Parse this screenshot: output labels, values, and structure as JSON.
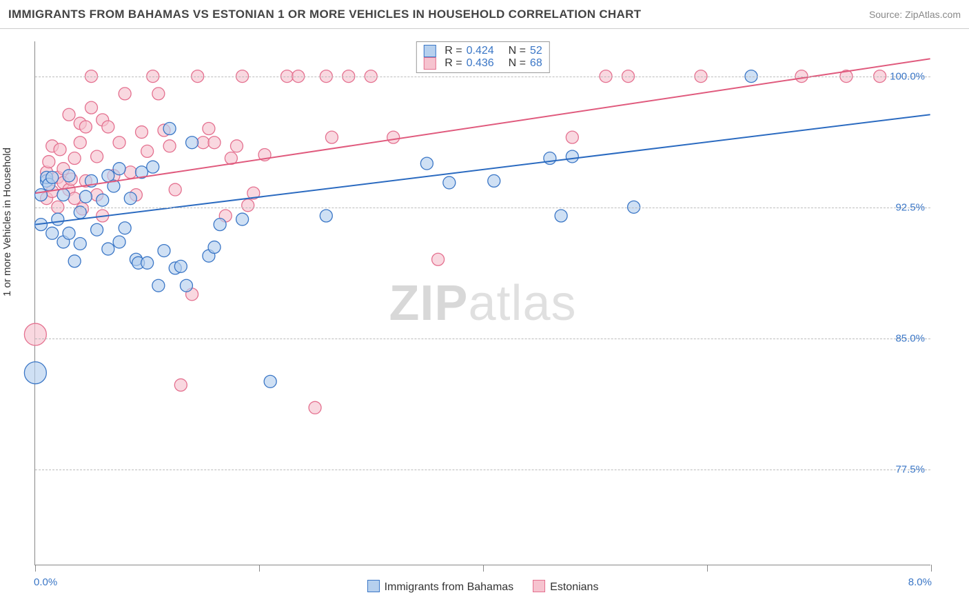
{
  "title": "IMMIGRANTS FROM BAHAMAS VS ESTONIAN 1 OR MORE VEHICLES IN HOUSEHOLD CORRELATION CHART",
  "source_label": "Source:",
  "source_name": "ZipAtlas.com",
  "y_axis_label": "1 or more Vehicles in Household",
  "watermark_a": "ZIP",
  "watermark_b": "atlas",
  "chart": {
    "type": "scatter",
    "xlim": [
      0.0,
      8.0
    ],
    "ylim": [
      72.0,
      102.0
    ],
    "x_ticks": [
      0.0,
      2.0,
      4.0,
      6.0,
      8.0
    ],
    "x_end_labels": [
      "0.0%",
      "8.0%"
    ],
    "y_gridlines": [
      77.5,
      85.0,
      92.5,
      100.0
    ],
    "y_tick_labels": [
      "77.5%",
      "85.0%",
      "92.5%",
      "100.0%"
    ],
    "grid_color": "#bbbbbb",
    "background_color": "#ffffff",
    "marker_radius": 9,
    "marker_radius_large": 16,
    "series": [
      {
        "name": "Immigrants from Bahamas",
        "fill": "#b6d0ee",
        "stroke": "#3a76c6",
        "fill_opacity": 0.65,
        "R": 0.424,
        "N": 52,
        "trend": {
          "x1": 0.0,
          "y1": 91.5,
          "x2": 8.0,
          "y2": 97.8,
          "color": "#2a6ac0",
          "width": 2
        },
        "points": [
          [
            0.05,
            91.5
          ],
          [
            0.05,
            93.2
          ],
          [
            0.1,
            94.0
          ],
          [
            0.1,
            94.2
          ],
          [
            0.12,
            93.8
          ],
          [
            0.15,
            91.0
          ],
          [
            0.15,
            94.2
          ],
          [
            0.2,
            91.8
          ],
          [
            0.25,
            90.5
          ],
          [
            0.25,
            93.2
          ],
          [
            0.3,
            91.0
          ],
          [
            0.3,
            94.3
          ],
          [
            0.35,
            89.4
          ],
          [
            0.4,
            92.2
          ],
          [
            0.4,
            90.4
          ],
          [
            0.45,
            93.1
          ],
          [
            0.5,
            94.0
          ],
          [
            0.55,
            91.2
          ],
          [
            0.6,
            92.9
          ],
          [
            0.65,
            94.3
          ],
          [
            0.65,
            90.1
          ],
          [
            0.7,
            93.7
          ],
          [
            0.75,
            94.7
          ],
          [
            0.75,
            90.5
          ],
          [
            0.8,
            91.3
          ],
          [
            0.85,
            93.0
          ],
          [
            0.9,
            89.5
          ],
          [
            0.92,
            89.3
          ],
          [
            0.95,
            94.5
          ],
          [
            1.0,
            89.3
          ],
          [
            1.05,
            94.8
          ],
          [
            1.1,
            88.0
          ],
          [
            1.15,
            90.0
          ],
          [
            1.2,
            97.0
          ],
          [
            1.25,
            89.0
          ],
          [
            1.3,
            89.1
          ],
          [
            1.35,
            88.0
          ],
          [
            1.4,
            96.2
          ],
          [
            1.55,
            89.7
          ],
          [
            1.6,
            90.2
          ],
          [
            1.65,
            91.5
          ],
          [
            1.85,
            91.8
          ],
          [
            2.1,
            82.5
          ],
          [
            2.6,
            92.0
          ],
          [
            3.5,
            95.0
          ],
          [
            3.7,
            93.9
          ],
          [
            4.1,
            94.0
          ],
          [
            4.6,
            95.3
          ],
          [
            4.7,
            92.0
          ],
          [
            4.8,
            95.4
          ],
          [
            5.35,
            92.5
          ],
          [
            6.4,
            100.0
          ]
        ],
        "large_points": [
          [
            0.0,
            83.0
          ]
        ]
      },
      {
        "name": "Estonians",
        "fill": "#f6c3cf",
        "stroke": "#e4708f",
        "fill_opacity": 0.65,
        "R": 0.436,
        "N": 68,
        "trend": {
          "x1": 0.0,
          "y1": 93.3,
          "x2": 8.0,
          "y2": 101.0,
          "color": "#e05a7d",
          "width": 2
        },
        "points": [
          [
            0.1,
            93.0
          ],
          [
            0.1,
            94.5
          ],
          [
            0.12,
            95.1
          ],
          [
            0.15,
            93.4
          ],
          [
            0.15,
            96.0
          ],
          [
            0.2,
            92.5
          ],
          [
            0.2,
            94.2
          ],
          [
            0.22,
            95.8
          ],
          [
            0.25,
            93.9
          ],
          [
            0.25,
            94.7
          ],
          [
            0.3,
            93.5
          ],
          [
            0.3,
            97.8
          ],
          [
            0.32,
            94.1
          ],
          [
            0.35,
            93.0
          ],
          [
            0.35,
            95.3
          ],
          [
            0.4,
            96.2
          ],
          [
            0.4,
            97.3
          ],
          [
            0.42,
            92.4
          ],
          [
            0.45,
            94.0
          ],
          [
            0.45,
            97.1
          ],
          [
            0.5,
            100.0
          ],
          [
            0.5,
            98.2
          ],
          [
            0.55,
            93.2
          ],
          [
            0.55,
            95.4
          ],
          [
            0.6,
            97.5
          ],
          [
            0.6,
            92.0
          ],
          [
            0.65,
            97.1
          ],
          [
            0.7,
            94.3
          ],
          [
            0.75,
            96.2
          ],
          [
            0.8,
            99.0
          ],
          [
            0.85,
            94.5
          ],
          [
            0.9,
            93.2
          ],
          [
            0.95,
            96.8
          ],
          [
            1.0,
            95.7
          ],
          [
            1.05,
            100.0
          ],
          [
            1.1,
            99.0
          ],
          [
            1.15,
            96.9
          ],
          [
            1.2,
            96.0
          ],
          [
            1.25,
            93.5
          ],
          [
            1.3,
            82.3
          ],
          [
            1.4,
            87.5
          ],
          [
            1.45,
            100.0
          ],
          [
            1.5,
            96.2
          ],
          [
            1.55,
            97.0
          ],
          [
            1.6,
            96.2
          ],
          [
            1.7,
            92.0
          ],
          [
            1.75,
            95.3
          ],
          [
            1.8,
            96.0
          ],
          [
            1.85,
            100.0
          ],
          [
            1.9,
            92.6
          ],
          [
            1.95,
            93.3
          ],
          [
            2.05,
            95.5
          ],
          [
            2.25,
            100.0
          ],
          [
            2.35,
            100.0
          ],
          [
            2.5,
            81.0
          ],
          [
            2.6,
            100.0
          ],
          [
            2.65,
            96.5
          ],
          [
            2.8,
            100.0
          ],
          [
            3.0,
            100.0
          ],
          [
            3.2,
            96.5
          ],
          [
            3.6,
            89.5
          ],
          [
            4.8,
            96.5
          ],
          [
            5.1,
            100.0
          ],
          [
            5.3,
            100.0
          ],
          [
            5.95,
            100.0
          ],
          [
            6.85,
            100.0
          ],
          [
            7.25,
            100.0
          ],
          [
            7.55,
            100.0
          ]
        ],
        "large_points": [
          [
            0.0,
            85.2
          ]
        ]
      }
    ]
  },
  "legend_top_labels": {
    "R": "R =",
    "N": "N ="
  }
}
